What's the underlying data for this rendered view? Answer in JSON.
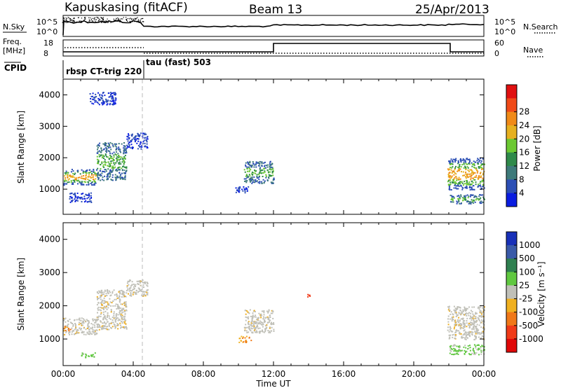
{
  "header": {
    "station": "Kapuskasing (fitACF)",
    "beam": "Beam 13",
    "date": "25/Apr/2013"
  },
  "summary": {
    "nsky_label": "N.Sky",
    "nsky_ticks": [
      "10^5",
      "10^0"
    ],
    "nsearch_label": "N.Search",
    "nsearch_ticks": [
      "10^5",
      "10^0"
    ],
    "freq_label_1": "Freq.",
    "freq_label_2": "[MHz]",
    "freq_ticks": [
      "18",
      "8"
    ],
    "nave_label": "Nave",
    "nave_ticks": [
      "60",
      "0"
    ],
    "cpid_label": "CPID",
    "cpid_segments": [
      {
        "label": "rbsp CT-trig 220",
        "start_hour": 0.0,
        "end_hour": 4.5
      },
      {
        "label": "tau (fast) 503",
        "start_hour": 4.5,
        "end_hour": 24.0
      }
    ]
  },
  "axes": {
    "x_label": "Time UT",
    "x_ticks": [
      "00:00",
      "04:00",
      "08:00",
      "12:00",
      "16:00",
      "20:00",
      "00:00"
    ],
    "y_label": "Slant Range [km]",
    "y_ticks": [
      "1000",
      "2000",
      "3000",
      "4000"
    ]
  },
  "colorbars": {
    "power": {
      "label": "Power [dB]",
      "ticks": [
        "4",
        "8",
        "12",
        "16",
        "20",
        "24",
        "28"
      ],
      "colors": [
        "#0a1de0",
        "#2c4fb5",
        "#3e7a7a",
        "#2f8a4a",
        "#6cc832",
        "#e6b020",
        "#f08a18",
        "#f04a18",
        "#e01010"
      ]
    },
    "velocity": {
      "label": "Velocity [m s⁻¹]",
      "ticks": [
        "1000",
        "500",
        "100",
        "25",
        "-25",
        "-100",
        "-500",
        "-1000"
      ],
      "colors": [
        "#1830b8",
        "#3a5aa8",
        "#2f8050",
        "#60c840",
        "#c0c0b8",
        "#f0b020",
        "#f07818",
        "#f03a18",
        "#e00808"
      ]
    }
  },
  "chart_data": [
    {
      "type": "heatmap",
      "panel": "power",
      "x_unit": "hour UT",
      "y_unit": "km",
      "xlim": [
        0,
        24
      ],
      "ylim": [
        200,
        4500
      ],
      "regions": [
        {
          "x": [
            0.0,
            1.9
          ],
          "y": [
            1150,
            1650
          ],
          "level": "high"
        },
        {
          "x": [
            1.9,
            3.6
          ],
          "y": [
            1300,
            2500
          ],
          "level": "mid"
        },
        {
          "x": [
            3.6,
            4.8
          ],
          "y": [
            2300,
            2800
          ],
          "level": "low"
        },
        {
          "x": [
            0.3,
            1.6
          ],
          "y": [
            600,
            900
          ],
          "level": "low"
        },
        {
          "x": [
            1.5,
            3.0
          ],
          "y": [
            3700,
            4100
          ],
          "level": "low"
        },
        {
          "x": [
            10.3,
            12.0
          ],
          "y": [
            1200,
            1900
          ],
          "level": "mid"
        },
        {
          "x": [
            9.8,
            10.6
          ],
          "y": [
            900,
            1100
          ],
          "level": "low"
        },
        {
          "x": [
            21.9,
            24.0
          ],
          "y": [
            1000,
            2000
          ],
          "level": "high"
        },
        {
          "x": [
            22.0,
            24.0
          ],
          "y": [
            550,
            850
          ],
          "level": "mid"
        }
      ]
    },
    {
      "type": "heatmap",
      "panel": "velocity",
      "x_unit": "hour UT",
      "y_unit": "km",
      "xlim": [
        0,
        24
      ],
      "ylim": [
        200,
        4500
      ],
      "regions": [
        {
          "x": [
            0.0,
            1.9
          ],
          "y": [
            1150,
            1650
          ],
          "level": "near-zero"
        },
        {
          "x": [
            1.9,
            3.6
          ],
          "y": [
            1300,
            2500
          ],
          "level": "near-zero"
        },
        {
          "x": [
            3.6,
            4.8
          ],
          "y": [
            2300,
            2800
          ],
          "level": "near-zero"
        },
        {
          "x": [
            0.0,
            0.4
          ],
          "y": [
            1250,
            1400
          ],
          "level": "negative"
        },
        {
          "x": [
            1.0,
            1.8
          ],
          "y": [
            450,
            600
          ],
          "level": "positive"
        },
        {
          "x": [
            10.3,
            12.0
          ],
          "y": [
            1200,
            1900
          ],
          "level": "near-zero"
        },
        {
          "x": [
            10.0,
            10.7
          ],
          "y": [
            900,
            1100
          ],
          "level": "negative"
        },
        {
          "x": [
            21.9,
            24.0
          ],
          "y": [
            1000,
            2000
          ],
          "level": "near-zero"
        },
        {
          "x": [
            22.0,
            24.0
          ],
          "y": [
            550,
            850
          ],
          "level": "positive"
        },
        {
          "x": [
            13.9,
            14.1
          ],
          "y": [
            2250,
            2400
          ],
          "level": "strong-negative"
        }
      ]
    }
  ]
}
